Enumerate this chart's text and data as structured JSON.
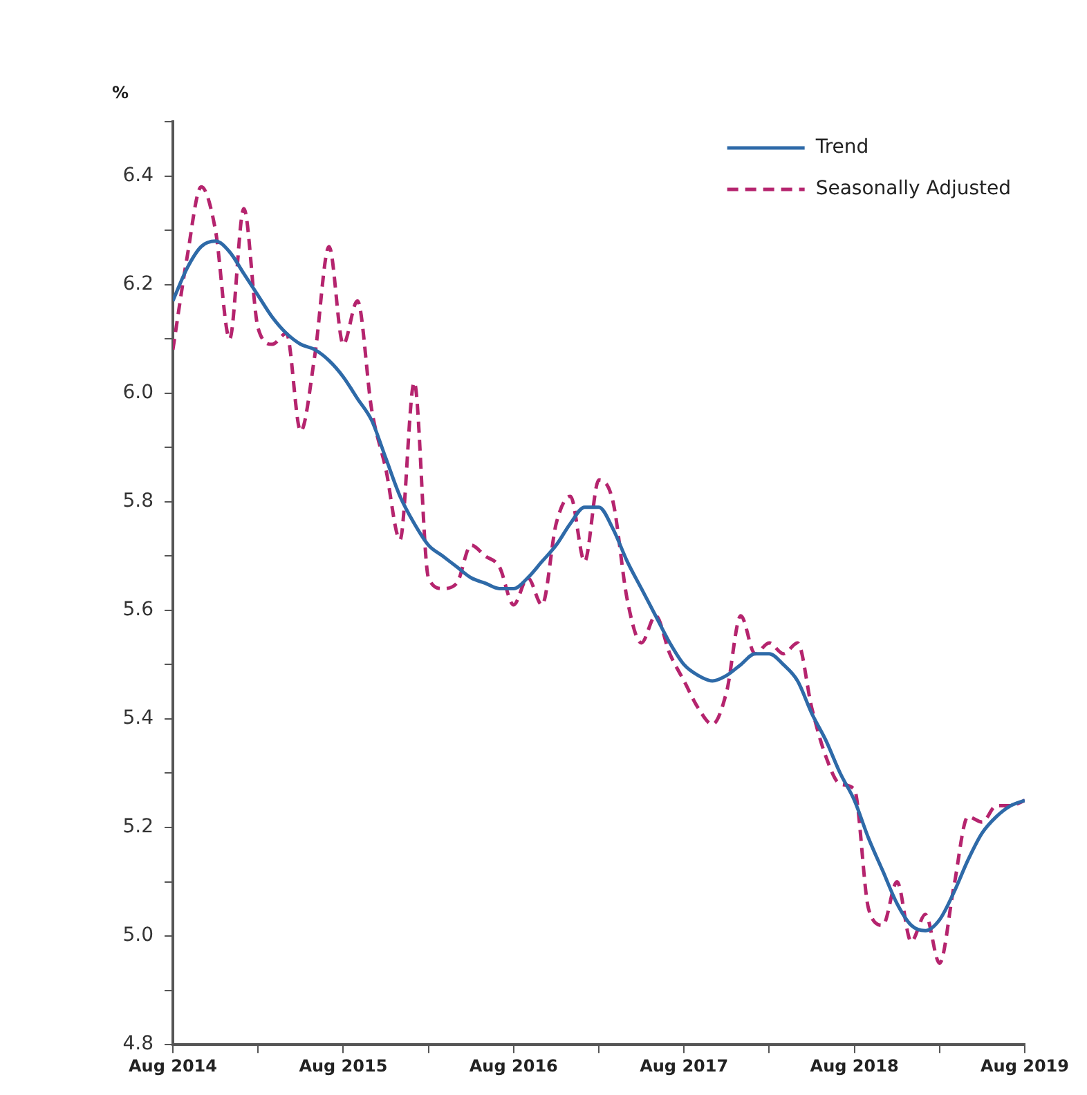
{
  "chart_data": {
    "type": "line",
    "ylabel": "%",
    "x": [
      "2014-08",
      "2014-09",
      "2014-10",
      "2014-11",
      "2014-12",
      "2015-01",
      "2015-02",
      "2015-03",
      "2015-04",
      "2015-05",
      "2015-06",
      "2015-07",
      "2015-08",
      "2015-09",
      "2015-10",
      "2015-11",
      "2015-12",
      "2016-01",
      "2016-02",
      "2016-03",
      "2016-04",
      "2016-05",
      "2016-06",
      "2016-07",
      "2016-08",
      "2016-09",
      "2016-10",
      "2016-11",
      "2016-12",
      "2017-01",
      "2017-02",
      "2017-03",
      "2017-04",
      "2017-05",
      "2017-06",
      "2017-07",
      "2017-08",
      "2017-09",
      "2017-10",
      "2017-11",
      "2017-12",
      "2018-01",
      "2018-02",
      "2018-03",
      "2018-04",
      "2018-05",
      "2018-06",
      "2018-07",
      "2018-08",
      "2018-09",
      "2018-10",
      "2018-11",
      "2018-12",
      "2019-01",
      "2019-02",
      "2019-03",
      "2019-04",
      "2019-05",
      "2019-06",
      "2019-07",
      "2019-08"
    ],
    "series": [
      {
        "name": "Trend",
        "color": "#2e6aa8",
        "line_style": "solid",
        "values": [
          6.17,
          6.23,
          6.27,
          6.28,
          6.26,
          6.22,
          6.18,
          6.14,
          6.11,
          6.09,
          6.08,
          6.06,
          6.03,
          5.99,
          5.95,
          5.88,
          5.81,
          5.76,
          5.72,
          5.7,
          5.68,
          5.66,
          5.65,
          5.64,
          5.64,
          5.66,
          5.69,
          5.72,
          5.76,
          5.79,
          5.79,
          5.75,
          5.69,
          5.64,
          5.59,
          5.54,
          5.5,
          5.48,
          5.47,
          5.48,
          5.5,
          5.52,
          5.52,
          5.5,
          5.47,
          5.41,
          5.36,
          5.3,
          5.25,
          5.18,
          5.12,
          5.06,
          5.02,
          5.01,
          5.03,
          5.08,
          5.14,
          5.19,
          5.22,
          5.24,
          5.25
        ]
      },
      {
        "name": "Seasonally Adjusted",
        "color": "#b5246e",
        "line_style": "dashed",
        "values": [
          6.08,
          6.25,
          6.38,
          6.3,
          6.1,
          6.34,
          6.12,
          6.09,
          6.11,
          5.93,
          6.07,
          6.27,
          6.09,
          6.17,
          5.97,
          5.86,
          5.73,
          6.02,
          5.66,
          5.64,
          5.65,
          5.72,
          5.7,
          5.68,
          5.61,
          5.66,
          5.61,
          5.76,
          5.81,
          5.69,
          5.84,
          5.8,
          5.62,
          5.54,
          5.59,
          5.52,
          5.47,
          5.42,
          5.39,
          5.45,
          5.59,
          5.52,
          5.54,
          5.52,
          5.54,
          5.42,
          5.33,
          5.28,
          5.27,
          5.05,
          5.02,
          5.1,
          4.99,
          5.04,
          4.95,
          5.09,
          5.22,
          5.21,
          5.24,
          5.24,
          5.25
        ]
      }
    ],
    "xlim": [
      "2014-08",
      "2019-08"
    ],
    "xticks": [
      {
        "value": "2014-08",
        "label": "Aug 2014"
      },
      {
        "value": "2015-02",
        "label": null
      },
      {
        "value": "2015-08",
        "label": "Aug 2015"
      },
      {
        "value": "2016-02",
        "label": null
      },
      {
        "value": "2016-08",
        "label": "Aug 2016"
      },
      {
        "value": "2017-02",
        "label": null
      },
      {
        "value": "2017-08",
        "label": "Aug 2017"
      },
      {
        "value": "2018-02",
        "label": null
      },
      {
        "value": "2018-08",
        "label": "Aug 2018"
      },
      {
        "value": "2019-02",
        "label": null
      },
      {
        "value": "2019-08",
        "label": "Aug 2019"
      }
    ],
    "ylim": [
      4.8,
      6.5
    ],
    "yticks": [
      {
        "value": 4.8,
        "label": "4.8"
      },
      {
        "value": 4.9,
        "label": null
      },
      {
        "value": 5.0,
        "label": "5.0"
      },
      {
        "value": 5.1,
        "label": null
      },
      {
        "value": 5.2,
        "label": "5.2"
      },
      {
        "value": 5.3,
        "label": null
      },
      {
        "value": 5.4,
        "label": "5.4"
      },
      {
        "value": 5.5,
        "label": null
      },
      {
        "value": 5.6,
        "label": "5.6"
      },
      {
        "value": 5.7,
        "label": null
      },
      {
        "value": 5.8,
        "label": "5.8"
      },
      {
        "value": 5.9,
        "label": null
      },
      {
        "value": 6.0,
        "label": "6.0"
      },
      {
        "value": 6.1,
        "label": null
      },
      {
        "value": 6.2,
        "label": "6.2"
      },
      {
        "value": 6.3,
        "label": null
      },
      {
        "value": 6.4,
        "label": "6.4"
      },
      {
        "value": 6.5,
        "label": null
      }
    ],
    "grid": false,
    "legend": "top right",
    "marker": "none"
  }
}
